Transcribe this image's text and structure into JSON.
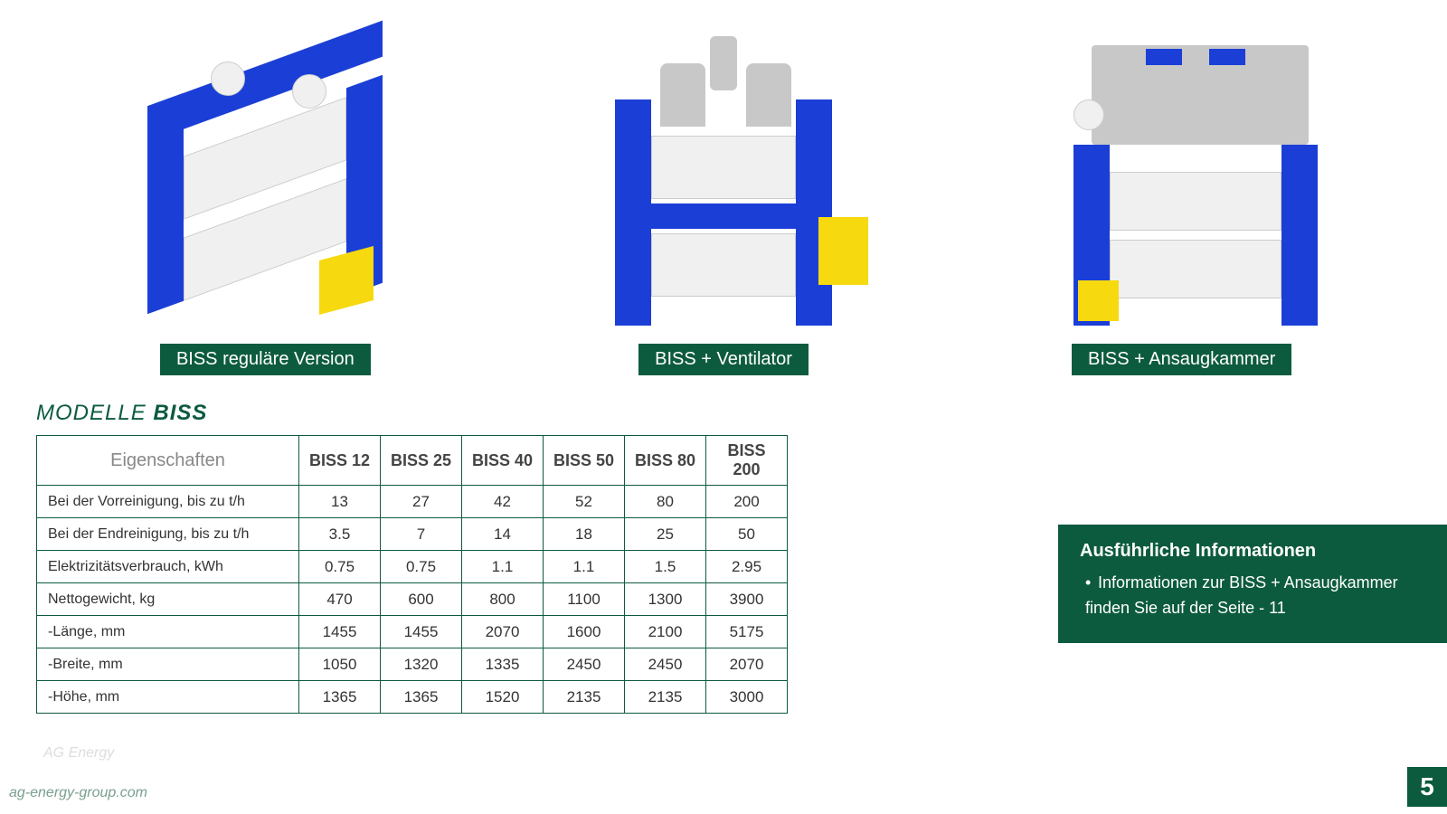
{
  "machines": [
    {
      "label": "BISS reguläre Version"
    },
    {
      "label": "BISS + Ventilator"
    },
    {
      "label": "BISS + Ansaugkammer"
    }
  ],
  "section_title_prefix": "MODELLE ",
  "section_title_bold": "BISS",
  "table": {
    "header_prop": "Eigenschaften",
    "columns": [
      "BISS 12",
      "BISS 25",
      "BISS 40",
      "BISS 50",
      "BISS 80",
      "BISS 200"
    ],
    "rows": [
      {
        "prop": "Bei der Vorreinigung, bis zu t/h",
        "vals": [
          "13",
          "27",
          "42",
          "52",
          "80",
          "200"
        ]
      },
      {
        "prop": "Bei der Endreinigung, bis zu t/h",
        "vals": [
          "3.5",
          "7",
          "14",
          "18",
          "25",
          "50"
        ]
      },
      {
        "prop": "Elektrizitätsverbrauch, kWh",
        "vals": [
          "0.75",
          "0.75",
          "1.1",
          "1.1",
          "1.5",
          "2.95"
        ]
      },
      {
        "prop": "Nettogewicht, kg",
        "vals": [
          "470",
          "600",
          "800",
          "1100",
          "1300",
          "3900"
        ]
      },
      {
        "prop": "-Länge, mm",
        "vals": [
          "1455",
          "1455",
          "2070",
          "1600",
          "2100",
          "5175"
        ]
      },
      {
        "prop": "-Breite, mm",
        "vals": [
          "1050",
          "1320",
          "1335",
          "2450",
          "2450",
          "2070"
        ]
      },
      {
        "prop": "-Höhe, mm",
        "vals": [
          "1365",
          "1365",
          "1520",
          "2135",
          "2135",
          "3000"
        ]
      }
    ]
  },
  "info_box": {
    "title": "Ausführliche Informationen",
    "body": "Informationen zur BISS + Ansaugkammer  finden Sie auf der Seite - 11"
  },
  "footer_url": "ag-energy-group.com",
  "page_number": "5",
  "watermark": "AG Energy",
  "colors": {
    "brand_green": "#0d5b3f",
    "machine_blue": "#1b3fd6",
    "machine_yellow": "#f7d90f",
    "machine_gray": "#c8c8c8"
  }
}
